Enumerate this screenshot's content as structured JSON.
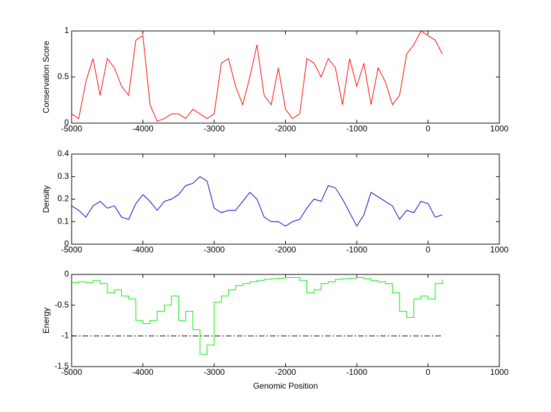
{
  "chart_data": [
    {
      "type": "line",
      "ylabel": "Conservation Score",
      "x": [
        -5000,
        -4900,
        -4800,
        -4700,
        -4600,
        -4500,
        -4400,
        -4300,
        -4200,
        -4100,
        -4000,
        -3900,
        -3800,
        -3700,
        -3600,
        -3500,
        -3400,
        -3300,
        -3200,
        -3100,
        -3000,
        -2900,
        -2800,
        -2700,
        -2600,
        -2500,
        -2400,
        -2300,
        -2200,
        -2100,
        -2000,
        -1900,
        -1800,
        -1700,
        -1600,
        -1500,
        -1400,
        -1300,
        -1200,
        -1100,
        -1000,
        -900,
        -800,
        -700,
        -600,
        -500,
        -400,
        -300,
        -200,
        -100,
        0,
        100,
        200
      ],
      "series": [
        {
          "color": "#ff0000",
          "values": [
            0.1,
            0.05,
            0.45,
            0.7,
            0.3,
            0.7,
            0.6,
            0.4,
            0.3,
            0.9,
            0.95,
            0.2,
            0.02,
            0.05,
            0.1,
            0.1,
            0.05,
            0.15,
            0.1,
            0.05,
            0.1,
            0.65,
            0.7,
            0.4,
            0.2,
            0.5,
            0.85,
            0.3,
            0.2,
            0.6,
            0.15,
            0.05,
            0.1,
            0.7,
            0.65,
            0.5,
            0.7,
            0.6,
            0.2,
            0.7,
            0.4,
            0.65,
            0.2,
            0.6,
            0.45,
            0.2,
            0.3,
            0.75,
            0.85,
            1,
            0.95,
            0.9,
            0.75
          ]
        }
      ],
      "xlim": [
        -5000,
        1000
      ],
      "xticks": [
        -5000,
        -4000,
        -3000,
        -2000,
        -1000,
        0,
        1000
      ],
      "ylim": [
        0,
        1
      ],
      "yticks": [
        0,
        0.5,
        1
      ]
    },
    {
      "type": "line",
      "ylabel": "Density",
      "x": [
        -5000,
        -4900,
        -4800,
        -4700,
        -4600,
        -4500,
        -4400,
        -4300,
        -4200,
        -4100,
        -4000,
        -3900,
        -3800,
        -3700,
        -3600,
        -3500,
        -3400,
        -3300,
        -3200,
        -3100,
        -3000,
        -2900,
        -2800,
        -2700,
        -2600,
        -2500,
        -2400,
        -2300,
        -2200,
        -2100,
        -2000,
        -1900,
        -1800,
        -1700,
        -1600,
        -1500,
        -1400,
        -1300,
        -1200,
        -1100,
        -1000,
        -900,
        -800,
        -700,
        -600,
        -500,
        -400,
        -300,
        -200,
        -100,
        0,
        100,
        200
      ],
      "series": [
        {
          "color": "#0000cc",
          "values": [
            0.17,
            0.15,
            0.12,
            0.17,
            0.19,
            0.16,
            0.17,
            0.12,
            0.11,
            0.18,
            0.22,
            0.19,
            0.15,
            0.19,
            0.2,
            0.22,
            0.26,
            0.27,
            0.3,
            0.28,
            0.16,
            0.14,
            0.15,
            0.15,
            0.19,
            0.23,
            0.2,
            0.12,
            0.1,
            0.1,
            0.08,
            0.1,
            0.11,
            0.16,
            0.2,
            0.19,
            0.26,
            0.25,
            0.2,
            0.14,
            0.08,
            0.13,
            0.23,
            0.21,
            0.19,
            0.17,
            0.11,
            0.15,
            0.14,
            0.19,
            0.18,
            0.12,
            0.13
          ]
        }
      ],
      "xlim": [
        -5000,
        1000
      ],
      "xticks": [
        -5000,
        -4000,
        -3000,
        -2000,
        -1000,
        0,
        1000
      ],
      "ylim": [
        0,
        0.4
      ],
      "yticks": [
        0,
        0.1,
        0.2,
        0.3,
        0.4
      ]
    },
    {
      "type": "line",
      "ylabel": "Energy",
      "xlabel": "Genomic Position",
      "drawstyle": "steps",
      "x": [
        -5000,
        -4900,
        -4800,
        -4700,
        -4600,
        -4500,
        -4400,
        -4300,
        -4200,
        -4100,
        -4000,
        -3900,
        -3800,
        -3700,
        -3600,
        -3500,
        -3400,
        -3300,
        -3200,
        -3100,
        -3000,
        -2900,
        -2800,
        -2700,
        -2600,
        -2500,
        -2400,
        -2300,
        -2200,
        -2100,
        -2000,
        -1900,
        -1800,
        -1700,
        -1600,
        -1500,
        -1400,
        -1300,
        -1200,
        -1100,
        -1000,
        -900,
        -800,
        -700,
        -600,
        -500,
        -400,
        -300,
        -200,
        -100,
        0,
        100,
        200
      ],
      "series": [
        {
          "color": "#00ee00",
          "values": [
            -0.13,
            -0.12,
            -0.13,
            -0.1,
            -0.15,
            -0.3,
            -0.25,
            -0.35,
            -0.4,
            -0.75,
            -0.8,
            -0.75,
            -0.6,
            -0.5,
            -0.35,
            -0.75,
            -0.6,
            -0.9,
            -1.3,
            -1.15,
            -0.45,
            -0.35,
            -0.25,
            -0.18,
            -0.15,
            -0.12,
            -0.1,
            -0.08,
            -0.07,
            -0.06,
            -0.05,
            -0.05,
            -0.1,
            -0.3,
            -0.25,
            -0.15,
            -0.12,
            -0.08,
            -0.07,
            -0.06,
            -0.05,
            -0.07,
            -0.1,
            -0.12,
            -0.15,
            -0.3,
            -0.6,
            -0.7,
            -0.4,
            -0.35,
            -0.4,
            -0.15,
            -0.08
          ]
        },
        {
          "color": "#000000",
          "linestyle": "dashdot",
          "x": [
            -5000,
            200
          ],
          "values": [
            -1,
            -1
          ]
        }
      ],
      "xlim": [
        -5000,
        1000
      ],
      "xticks": [
        -5000,
        -4000,
        -3000,
        -2000,
        -1000,
        0,
        1000
      ],
      "ylim": [
        -1.5,
        0
      ],
      "yticks": [
        -1.5,
        -1,
        -0.5,
        0
      ]
    }
  ]
}
